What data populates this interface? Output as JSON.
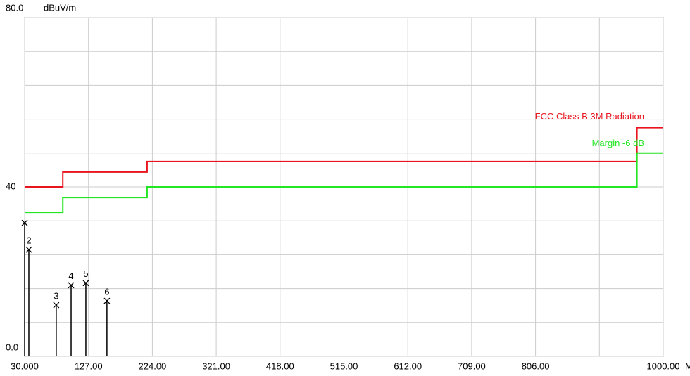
{
  "chart_data": {
    "type": "line",
    "y_unit": "dBuV/m",
    "x_unit": "MHz",
    "xlim": [
      30,
      1000
    ],
    "ylim": [
      0,
      80
    ],
    "xticks": [
      {
        "value": 30,
        "label": "30.000"
      },
      {
        "value": 127,
        "label": "127.00"
      },
      {
        "value": 224,
        "label": "224.00"
      },
      {
        "value": 321,
        "label": "321.00"
      },
      {
        "value": 418,
        "label": "418.00"
      },
      {
        "value": 515,
        "label": "515.00"
      },
      {
        "value": 612,
        "label": "612.00"
      },
      {
        "value": 709,
        "label": "709.00"
      },
      {
        "value": 806,
        "label": "806.00"
      },
      {
        "value": 1000,
        "label": "1000.00"
      }
    ],
    "xgrid": [
      30,
      127,
      224,
      321,
      418,
      515,
      612,
      709,
      806,
      903,
      1000
    ],
    "yticks": [
      {
        "value": 80,
        "label": "80.0"
      },
      40,
      {
        "value": 0,
        "label": "0.0"
      }
    ],
    "ygrid": [
      0,
      8,
      16,
      24,
      32,
      40,
      48,
      56,
      64,
      72,
      80
    ],
    "grid": true,
    "series": [
      {
        "name": "FCC Class B 3M Radiation",
        "color": "#e8141e",
        "x": [
          30,
          88,
          88,
          216,
          216,
          960,
          960,
          1000
        ],
        "values": [
          40,
          40,
          43.5,
          43.5,
          46,
          46,
          54,
          54
        ]
      },
      {
        "name": "Margin -6 dB",
        "color": "#22e622",
        "x": [
          30,
          88,
          88,
          216,
          216,
          960,
          960,
          1000
        ],
        "values": [
          34,
          34,
          37.5,
          37.5,
          40,
          40,
          48,
          48
        ]
      }
    ],
    "markers": [
      {
        "x": 30,
        "y": 31.5
      },
      {
        "label": "2",
        "x": 36.4,
        "y": 25.2
      },
      {
        "label": "3",
        "x": 78,
        "y": 12.1
      },
      {
        "label": "4",
        "x": 100.6,
        "y": 16.8
      },
      {
        "label": "5",
        "x": 123,
        "y": 17.3
      },
      {
        "label": "6",
        "x": 155,
        "y": 13.1
      }
    ]
  }
}
